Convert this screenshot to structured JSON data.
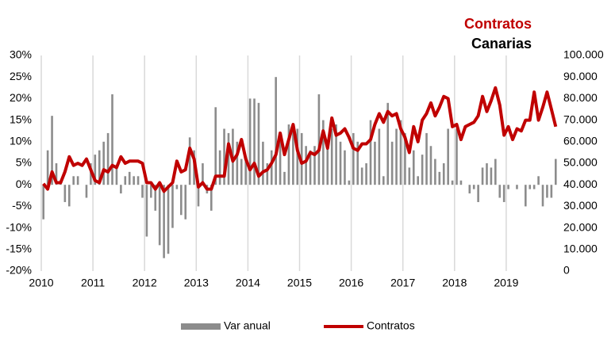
{
  "chart_data": {
    "type": "bar_line",
    "title": "Contratos",
    "subtitle": "Canarias",
    "categories": [
      "2010",
      null,
      null,
      null,
      null,
      null,
      null,
      null,
      null,
      null,
      null,
      null,
      "2011",
      null,
      null,
      null,
      null,
      null,
      null,
      null,
      null,
      null,
      null,
      null,
      "2012",
      null,
      null,
      null,
      null,
      null,
      null,
      null,
      null,
      null,
      null,
      null,
      "2013",
      null,
      null,
      null,
      null,
      null,
      null,
      null,
      null,
      null,
      null,
      null,
      "2014",
      null,
      null,
      null,
      null,
      null,
      null,
      null,
      null,
      null,
      null,
      null,
      "2015",
      null,
      null,
      null,
      null,
      null,
      null,
      null,
      null,
      null,
      null,
      null,
      "2016",
      null,
      null,
      null,
      null,
      null,
      null,
      null,
      null,
      null,
      null,
      null,
      "2017",
      null,
      null,
      null,
      null,
      null,
      null,
      null,
      null,
      null,
      null,
      null,
      "2018",
      null,
      null,
      null,
      null,
      null,
      null,
      null,
      null,
      null,
      null,
      null,
      "2019",
      null,
      null,
      null,
      null,
      null,
      null,
      null,
      null,
      null,
      null,
      null
    ],
    "series": [
      {
        "name": "Var anual",
        "color": "#8c8c8c",
        "kind": "bar",
        "axis": "y",
        "values": [
          -8,
          8,
          16,
          5,
          1,
          -4,
          -5,
          2,
          2,
          0,
          -3,
          5,
          7,
          8,
          10,
          12,
          21,
          4,
          -2,
          2,
          3,
          2,
          2,
          -3,
          -12,
          -3,
          -6,
          -14,
          -17,
          -16,
          -10,
          -1,
          -7,
          -8,
          11,
          8,
          -5,
          5,
          -2,
          -6,
          18,
          8,
          13,
          12,
          13,
          10,
          6,
          6,
          20,
          20,
          19,
          10,
          5,
          8,
          25,
          10,
          3,
          14,
          14,
          13,
          12,
          9,
          8,
          9,
          21,
          15,
          9,
          13,
          14,
          10,
          8,
          1,
          12,
          10,
          4,
          5,
          15,
          10,
          13,
          2,
          19,
          10,
          13,
          15,
          12,
          4,
          8,
          2,
          7,
          12,
          9,
          6,
          3,
          5,
          13,
          1,
          13,
          1,
          0,
          -2,
          -1,
          -4,
          4,
          5,
          4,
          6,
          -3,
          -4,
          -1,
          0,
          -1,
          0,
          -5,
          -1,
          -1,
          2,
          -5,
          -3,
          -3,
          6
        ]
      },
      {
        "name": "Contratos",
        "color": "#c00000",
        "kind": "line",
        "axis": "y2",
        "values": [
          40500,
          38000,
          46000,
          41000,
          41000,
          46000,
          53000,
          49000,
          50000,
          49000,
          52000,
          47000,
          42000,
          41000,
          47000,
          46000,
          49000,
          48000,
          53000,
          50000,
          51000,
          51000,
          51000,
          50000,
          41000,
          41000,
          38000,
          41000,
          37000,
          39000,
          41000,
          51000,
          46000,
          47000,
          57000,
          52000,
          39000,
          41000,
          38000,
          38000,
          44000,
          44000,
          44000,
          59000,
          51000,
          54000,
          61000,
          52000,
          47000,
          50000,
          44000,
          46000,
          47000,
          50000,
          54000,
          64000,
          54000,
          61000,
          68000,
          56000,
          50000,
          51000,
          55000,
          54000,
          56000,
          65000,
          57000,
          71000,
          63000,
          64000,
          66000,
          62000,
          57000,
          56000,
          59000,
          59000,
          61000,
          68000,
          73000,
          69000,
          74000,
          72000,
          73000,
          66000,
          62000,
          55000,
          67000,
          60000,
          70000,
          73000,
          78000,
          72000,
          76000,
          81000,
          80000,
          67000,
          68000,
          61000,
          67000,
          68000,
          69000,
          72000,
          81000,
          74000,
          79000,
          85000,
          77000,
          63000,
          67000,
          61000,
          66000,
          65000,
          70000,
          70000,
          83000,
          70000,
          76000,
          83000,
          75000,
          67000
        ]
      }
    ],
    "ylim": [
      -20,
      30
    ],
    "yticks": [
      {
        "value": -20,
        "label": "-20%"
      },
      {
        "value": -15,
        "label": "-15%"
      },
      {
        "value": -10,
        "label": "-10%"
      },
      {
        "value": -5,
        "label": "-5%"
      },
      {
        "value": 0,
        "label": "0%"
      },
      {
        "value": 5,
        "label": "5%"
      },
      {
        "value": 10,
        "label": "10%"
      },
      {
        "value": 15,
        "label": "15%"
      },
      {
        "value": 20,
        "label": "20%"
      },
      {
        "value": 25,
        "label": "25%"
      },
      {
        "value": 30,
        "label": "30%"
      }
    ],
    "y2lim": [
      0,
      100000
    ],
    "y2ticks": [
      0,
      {
        "value": 10000,
        "label": "10.000"
      },
      {
        "value": 20000,
        "label": "20.000"
      },
      {
        "value": 30000,
        "label": "30.000"
      },
      {
        "value": 40000,
        "label": "40.000"
      },
      {
        "value": 50000,
        "label": "50.000"
      },
      {
        "value": 60000,
        "label": "60.000"
      },
      {
        "value": 70000,
        "label": "70.000"
      },
      {
        "value": 80000,
        "label": "80.000"
      },
      {
        "value": 90000,
        "label": "90.000"
      },
      {
        "value": 100000,
        "label": "100.000"
      }
    ],
    "legend": "bottom"
  }
}
